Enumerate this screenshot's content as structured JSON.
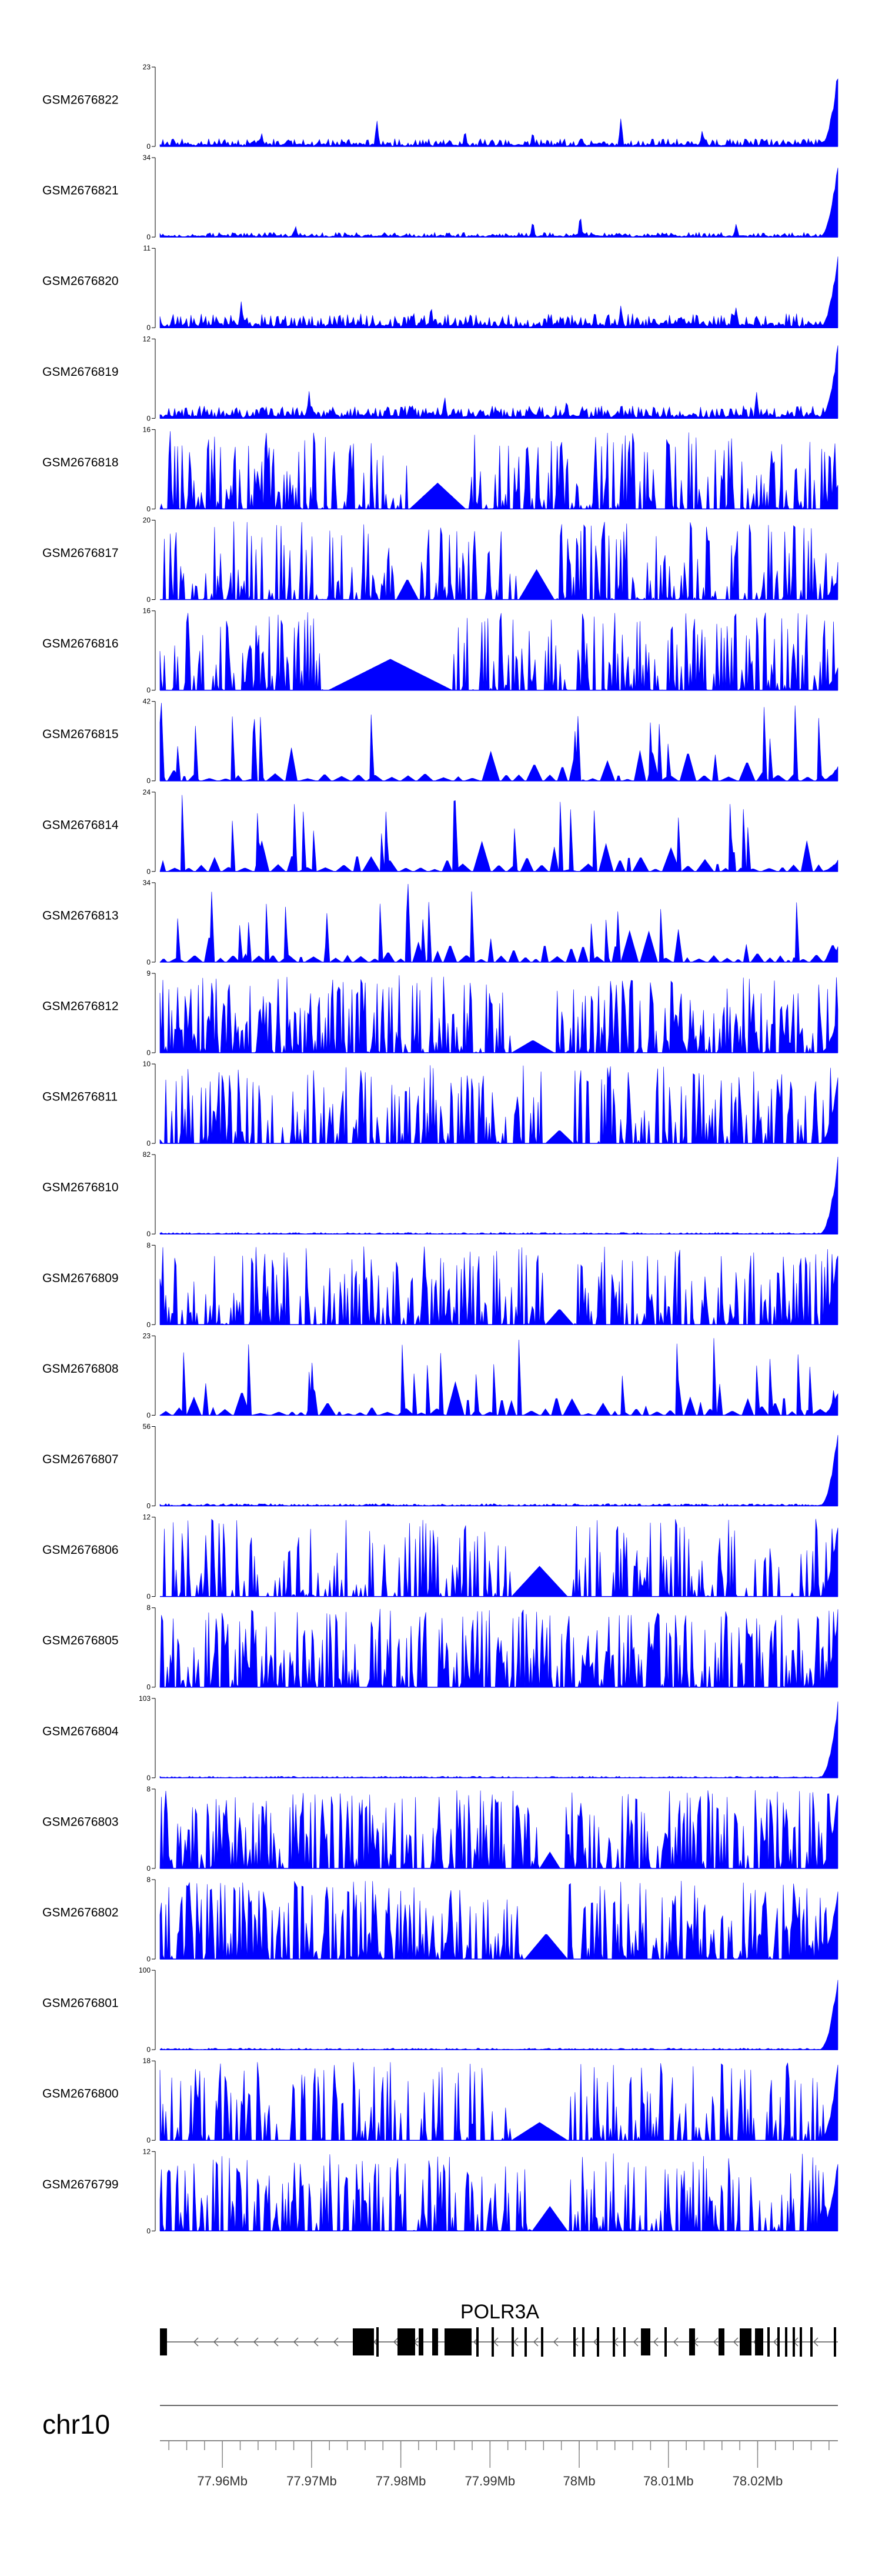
{
  "chart_data": {
    "type": "area",
    "fill_color": "#0000ff",
    "axis_color": "#000000",
    "x_range_mb": [
      77.953,
      78.029
    ],
    "tracks": [
      {
        "name": "GSM2676822",
        "ymax": "23",
        "max": 23,
        "pattern": "lowbg",
        "bg": 0.1,
        "peaks": [
          [
            0.32,
            0.35
          ],
          [
            0.68,
            0.38
          ],
          [
            0.45,
            0.22
          ],
          [
            0.8,
            0.22
          ],
          [
            0.15,
            0.18
          ],
          [
            0.55,
            0.2
          ]
        ],
        "tail": 1.0
      },
      {
        "name": "GSM2676821",
        "ymax": "34",
        "max": 34,
        "pattern": "lowbg",
        "bg": 0.06,
        "peaks": [
          [
            0.62,
            0.3
          ],
          [
            0.55,
            0.22
          ],
          [
            0.2,
            0.15
          ],
          [
            0.85,
            0.18
          ]
        ],
        "tail": 1.0
      },
      {
        "name": "GSM2676820",
        "ymax": "11",
        "max": 11,
        "pattern": "lowbg",
        "bg": 0.18,
        "peaks": [
          [
            0.12,
            0.35
          ],
          [
            0.4,
            0.3
          ],
          [
            0.68,
            0.3
          ],
          [
            0.85,
            0.28
          ]
        ],
        "tail": 1.0
      },
      {
        "name": "GSM2676819",
        "ymax": "12",
        "max": 12,
        "pattern": "lowbg",
        "bg": 0.16,
        "peaks": [
          [
            0.22,
            0.35
          ],
          [
            0.42,
            0.3
          ],
          [
            0.6,
            0.25
          ],
          [
            0.88,
            0.35
          ]
        ],
        "tail": 1.0
      },
      {
        "name": "GSM2676818",
        "ymax": "16",
        "max": 16,
        "pattern": "spiky",
        "dens": 0.55,
        "gaps": [
          [
            0.37,
            0.45
          ]
        ],
        "tail": 0.35
      },
      {
        "name": "GSM2676817",
        "ymax": "20",
        "max": 20,
        "pattern": "spiky",
        "dens": 0.5,
        "gaps": [
          [
            0.35,
            0.38
          ],
          [
            0.53,
            0.58
          ]
        ],
        "tail": 0.3
      },
      {
        "name": "GSM2676816",
        "ymax": "16",
        "max": 16,
        "pattern": "spiky",
        "dens": 0.55,
        "gaps": [
          [
            0.25,
            0.43
          ]
        ],
        "tail": 0.3
      },
      {
        "name": "GSM2676815",
        "ymax": "42",
        "max": 42,
        "pattern": "tri",
        "dens": 0.28,
        "gaps": [],
        "tail": 0.2
      },
      {
        "name": "GSM2676814",
        "ymax": "24",
        "max": 24,
        "pattern": "tri",
        "dens": 0.3,
        "gaps": [],
        "tail": 0.15
      },
      {
        "name": "GSM2676813",
        "ymax": "34",
        "max": 34,
        "pattern": "tri",
        "dens": 0.28,
        "gaps": [],
        "tail": 0.2
      },
      {
        "name": "GSM2676812",
        "ymax": "9",
        "max": 9,
        "pattern": "dense",
        "dens": 0.62,
        "gaps": [
          [
            0.52,
            0.58
          ]
        ],
        "tail": 0.55
      },
      {
        "name": "GSM2676811",
        "ymax": "10",
        "max": 10,
        "pattern": "dense",
        "dens": 0.55,
        "gaps": [
          [
            0.57,
            0.61
          ]
        ],
        "tail": 0.9
      },
      {
        "name": "GSM2676810",
        "ymax": "82",
        "max": 82,
        "pattern": "lowbg",
        "bg": 0.02,
        "peaks": [],
        "tail": 1.0
      },
      {
        "name": "GSM2676809",
        "ymax": "8",
        "max": 8,
        "pattern": "dense",
        "dens": 0.55,
        "gaps": [
          [
            0.57,
            0.61
          ]
        ],
        "tail": 1.0
      },
      {
        "name": "GSM2676808",
        "ymax": "23",
        "max": 23,
        "pattern": "tri",
        "dens": 0.4,
        "gaps": [],
        "tail": 0.3
      },
      {
        "name": "GSM2676807",
        "ymax": "56",
        "max": 56,
        "pattern": "lowbg",
        "bg": 0.03,
        "peaks": [],
        "tail": 1.0
      },
      {
        "name": "GSM2676806",
        "ymax": "12",
        "max": 12,
        "pattern": "dense",
        "dens": 0.45,
        "gaps": [
          [
            0.52,
            0.6
          ]
        ],
        "tail": 1.0
      },
      {
        "name": "GSM2676805",
        "ymax": "8",
        "max": 8,
        "pattern": "dense",
        "dens": 0.6,
        "gaps": [],
        "tail": 1.0
      },
      {
        "name": "GSM2676804",
        "ymax": "103",
        "max": 103,
        "pattern": "lowbg",
        "bg": 0.02,
        "peaks": [],
        "tail": 1.0
      },
      {
        "name": "GSM2676803",
        "ymax": "8",
        "max": 8,
        "pattern": "dense",
        "dens": 0.6,
        "gaps": [
          [
            0.56,
            0.59
          ]
        ],
        "tail": 1.0
      },
      {
        "name": "GSM2676802",
        "ymax": "8",
        "max": 8,
        "pattern": "dense",
        "dens": 0.65,
        "gaps": [
          [
            0.54,
            0.6
          ]
        ],
        "tail": 1.0
      },
      {
        "name": "GSM2676801",
        "ymax": "100",
        "max": 100,
        "pattern": "lowbg",
        "bg": 0.02,
        "peaks": [],
        "tail": 1.0
      },
      {
        "name": "GSM2676800",
        "ymax": "18",
        "max": 18,
        "pattern": "dense",
        "dens": 0.4,
        "gaps": [
          [
            0.52,
            0.6
          ]
        ],
        "tail": 1.0
      },
      {
        "name": "GSM2676799",
        "ymax": "12",
        "max": 12,
        "pattern": "dense",
        "dens": 0.5,
        "gaps": [
          [
            0.55,
            0.6
          ]
        ],
        "tail": 1.0
      }
    ],
    "gene": {
      "name": "POLR3A",
      "strand": "-"
    },
    "chromosome": "chr10",
    "tick_labels": [
      "77.96Mb",
      "77.97Mb",
      "77.98Mb",
      "77.99Mb",
      "78Mb",
      "78.01Mb",
      "78.02Mb"
    ],
    "tick_values": [
      77.96,
      77.97,
      77.98,
      77.99,
      78.0,
      78.01,
      78.02
    ]
  }
}
